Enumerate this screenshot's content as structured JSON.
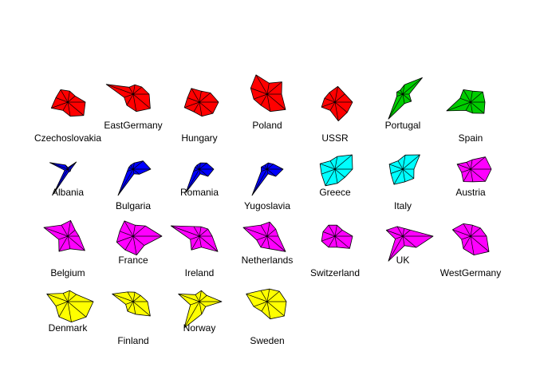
{
  "chart_data": {
    "type": "star",
    "variables_count": 9,
    "colors": {
      "red": "#ff0000",
      "green": "#00cd00",
      "blue": "#0000ff",
      "cyan": "#00ffff",
      "magenta": "#ff00ff",
      "yellow": "#ffff00"
    },
    "series": [
      {
        "name": "Czechoslovakia",
        "color": "red",
        "values": [
          0.55,
          0.3,
          0.35,
          0.45,
          0.4,
          0.55,
          0.3,
          0.45,
          0.65
        ]
      },
      {
        "name": "EastGermany",
        "color": "red",
        "values": [
          0.5,
          0.35,
          0.3,
          0.25,
          0.9,
          0.3,
          0.4,
          0.55,
          0.7
        ]
      },
      {
        "name": "Hungary",
        "color": "red",
        "values": [
          0.6,
          0.45,
          0.35,
          0.5,
          0.4,
          0.5,
          0.35,
          0.45,
          0.55
        ]
      },
      {
        "name": "Poland",
        "color": "red",
        "values": [
          0.45,
          0.6,
          0.35,
          0.7,
          0.55,
          0.45,
          0.4,
          0.55,
          0.75
        ]
      },
      {
        "name": "USSR",
        "color": "red",
        "values": [
          0.55,
          0.4,
          0.5,
          0.35,
          0.35,
          0.45,
          0.3,
          0.6,
          0.5
        ]
      },
      {
        "name": "Portugal",
        "color": "green",
        "values": [
          0.2,
          0.8,
          0.3,
          0.15,
          0.2,
          0.2,
          0.9,
          0.3,
          0.35
        ]
      },
      {
        "name": "Spain",
        "color": "green",
        "values": [
          0.45,
          0.5,
          0.35,
          0.45,
          0.35,
          0.8,
          0.3,
          0.35,
          0.55
        ]
      },
      {
        "name": "Albania",
        "color": "blue",
        "values": [
          0.1,
          0.35,
          0.05,
          0.15,
          0.6,
          0.1,
          0.9,
          0.1,
          0.1
        ]
      },
      {
        "name": "Bulgaria",
        "color": "blue",
        "values": [
          0.55,
          0.4,
          0.2,
          0.15,
          0.15,
          0.2,
          0.95,
          0.15,
          0.25
        ]
      },
      {
        "name": "Romania",
        "color": "blue",
        "values": [
          0.45,
          0.3,
          0.2,
          0.15,
          0.15,
          0.2,
          0.85,
          0.15,
          0.35
        ]
      },
      {
        "name": "Yugoslavia",
        "color": "blue",
        "values": [
          0.5,
          0.25,
          0.2,
          0.15,
          0.2,
          0.2,
          0.95,
          0.15,
          0.35
        ]
      },
      {
        "name": "Greece",
        "color": "cyan",
        "values": [
          0.55,
          0.7,
          0.4,
          0.3,
          0.5,
          0.45,
          0.6,
          0.45,
          0.4
        ]
      },
      {
        "name": "Italy",
        "color": "cyan",
        "values": [
          0.35,
          0.7,
          0.45,
          0.3,
          0.45,
          0.4,
          0.55,
          0.4,
          0.45
        ]
      },
      {
        "name": "Austria",
        "color": "magenta",
        "values": [
          0.65,
          0.6,
          0.3,
          0.25,
          0.45,
          0.3,
          0.45,
          0.4,
          0.6
        ]
      },
      {
        "name": "Belgium",
        "color": "magenta",
        "values": [
          0.35,
          0.3,
          0.5,
          0.4,
          0.8,
          0.3,
          0.55,
          0.4,
          0.7
        ]
      },
      {
        "name": "France",
        "color": "magenta",
        "values": [
          0.9,
          0.5,
          0.35,
          0.55,
          0.45,
          0.55,
          0.5,
          0.6,
          0.45
        ]
      },
      {
        "name": "Ireland",
        "color": "magenta",
        "values": [
          0.4,
          0.35,
          0.3,
          0.35,
          0.95,
          0.3,
          0.5,
          0.35,
          0.75
        ]
      },
      {
        "name": "Netherlands",
        "color": "magenta",
        "values": [
          0.35,
          0.35,
          0.45,
          0.4,
          0.8,
          0.35,
          0.4,
          0.4,
          0.75
        ]
      },
      {
        "name": "Switzerland",
        "color": "magenta",
        "values": [
          0.55,
          0.3,
          0.35,
          0.4,
          0.4,
          0.45,
          0.4,
          0.35,
          0.6
        ]
      },
      {
        "name": "UK",
        "color": "magenta",
        "values": [
          0.95,
          0.3,
          0.25,
          0.35,
          0.55,
          0.25,
          0.9,
          0.3,
          0.55
        ]
      },
      {
        "name": "WestGermany",
        "color": "magenta",
        "values": [
          0.5,
          0.4,
          0.35,
          0.45,
          0.6,
          0.3,
          0.45,
          0.6,
          0.75
        ]
      },
      {
        "name": "Denmark",
        "color": "yellow",
        "values": [
          0.8,
          0.35,
          0.35,
          0.3,
          0.7,
          0.4,
          0.55,
          0.65,
          0.75
        ]
      },
      {
        "name": "Finland",
        "color": "yellow",
        "values": [
          0.45,
          0.3,
          0.3,
          0.35,
          0.7,
          0.25,
          0.35,
          0.4,
          0.7
        ]
      },
      {
        "name": "Norway",
        "color": "yellow",
        "values": [
          0.7,
          0.3,
          0.35,
          0.25,
          0.7,
          0.3,
          0.95,
          0.4,
          0.25
        ]
      },
      {
        "name": "Sweden",
        "color": "yellow",
        "values": [
          0.6,
          0.5,
          0.4,
          0.4,
          0.7,
          0.45,
          0.35,
          0.55,
          0.7
        ]
      }
    ]
  }
}
